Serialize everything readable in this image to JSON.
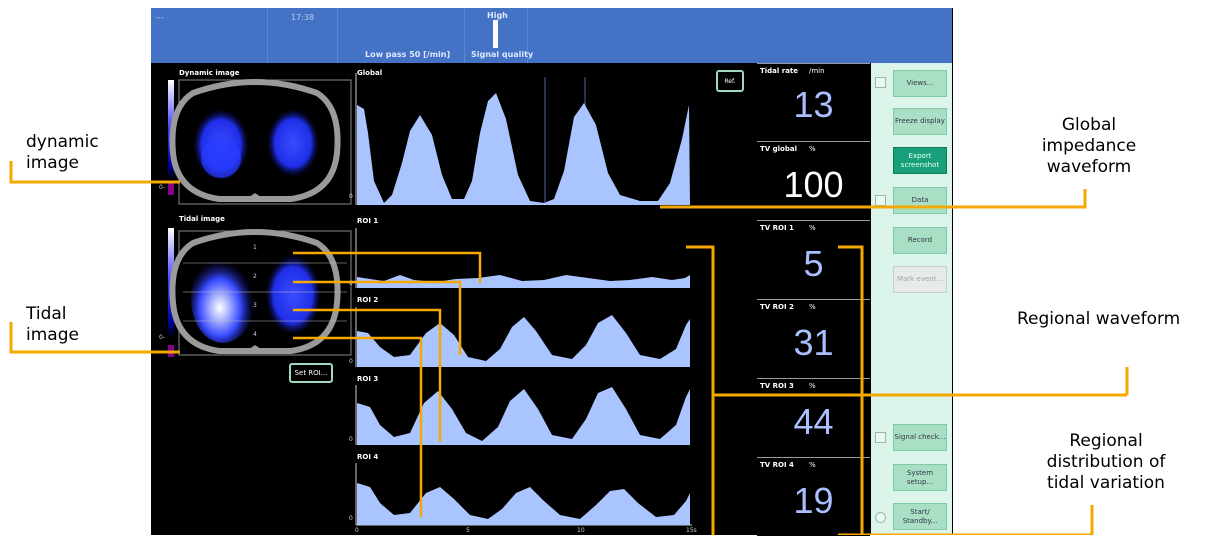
{
  "topbar": {
    "dashes": "---",
    "time": "17:38",
    "lowpass": "Low pass 50 [/min]",
    "quality_high": "High",
    "quality_label": "Signal quality"
  },
  "images": {
    "dynamic_title": "Dynamic image",
    "tidal_title": "Tidal image",
    "zero": "0-",
    "roi_numbers": [
      "1",
      "2",
      "3",
      "4"
    ],
    "set_roi": "Set ROI..."
  },
  "waveforms": {
    "global": "Global",
    "roi1": "ROI 1",
    "roi2": "ROI 2",
    "roi3": "ROI 3",
    "roi4": "ROI 4",
    "ref": "Ref.",
    "zero": "0",
    "xticks": [
      "0",
      "5",
      "10",
      "15s"
    ]
  },
  "numerics": [
    {
      "label": "Tidal rate",
      "unit": "/min",
      "value": "13"
    },
    {
      "label": "TV global",
      "unit": "%",
      "value": "100"
    },
    {
      "label": "TV ROI 1",
      "unit": "%",
      "value": "5"
    },
    {
      "label": "TV ROI 2",
      "unit": "%",
      "value": "31"
    },
    {
      "label": "TV ROI 3",
      "unit": "%",
      "value": "44"
    },
    {
      "label": "TV ROI 4",
      "unit": "%",
      "value": "19"
    }
  ],
  "sidebar": {
    "views": "Views...",
    "freeze": "Freeze display",
    "export": "Export screenshot",
    "data": "Data",
    "record": "Record",
    "mark": "Mark event...",
    "signal": "Signal check...",
    "system": "System setup...",
    "start": "Start/ Standby..."
  },
  "annotations": {
    "dynamic_l1": "dynamic",
    "dynamic_l2": "image",
    "tidal_l1": "Tidal",
    "tidal_l2": "image",
    "global_l1": "Global",
    "global_l2": "impedance",
    "global_l3": "waveform",
    "regional": "Regional waveform",
    "dist_l1": "Regional",
    "dist_l2": "distribution of",
    "dist_l3": "tidal variation",
    "line_color": "#f5a800"
  },
  "colors": {
    "topbar": "#4472c4",
    "wave_fill": "#aac4ff",
    "sidebar": "#dcf5ea",
    "export_button": "#18a07a"
  }
}
